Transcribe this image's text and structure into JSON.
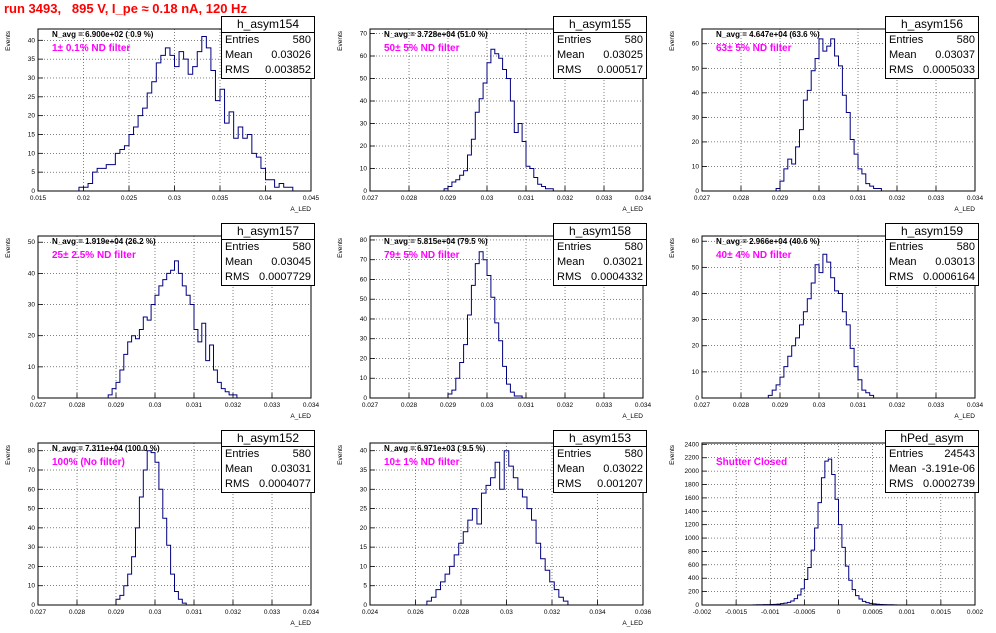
{
  "title": "run 3493,   895 V, I_pe ≈ 0.18 nA, 120 Hz",
  "colors": {
    "title": "#ff0000",
    "line": "#000080",
    "filter": "#ff00ff",
    "grid": "#000000"
  },
  "chart_data": [
    {
      "type": "histogram",
      "hist": "h_asym154",
      "entries": "580",
      "mean": "0.03026",
      "rms": "0.003852",
      "navg": "N_avg = 6.900e+02 ( 0.9 %)",
      "filter": "1± 0.1% ND filter",
      "xlabel": "A_LED",
      "ylabel": "Events",
      "xticks": [
        "0.015",
        "0.02",
        "0.025",
        "0.03",
        "0.035",
        "0.04",
        "0.045"
      ],
      "yticks": [
        "0",
        "5",
        "10",
        "15",
        "20",
        "25",
        "30",
        "35",
        "40"
      ],
      "xlim": [
        0.015,
        0.045
      ],
      "ylim": [
        0,
        43
      ],
      "x0": 0.0195,
      "dx": 0.0005,
      "values": [
        1,
        1,
        2,
        5,
        6,
        6,
        7,
        7,
        10,
        11,
        12,
        15,
        17,
        20,
        22,
        26,
        29,
        34,
        36,
        38,
        36,
        33,
        37,
        35,
        31,
        33,
        37,
        41,
        38,
        32,
        24,
        27,
        18,
        21,
        14,
        17,
        14,
        15,
        10,
        9,
        6,
        3,
        3,
        1,
        2,
        1,
        1
      ]
    },
    {
      "type": "histogram",
      "hist": "h_asym155",
      "entries": "580",
      "mean": "0.03025",
      "rms": "0.000517",
      "navg": "N_avg = 3.728e+04 (51.0 %)",
      "filter": "50± 5% ND filter",
      "xlabel": "A_LED",
      "ylabel": "Events",
      "xticks": [
        "0.027",
        "0.028",
        "0.029",
        "0.03",
        "0.031",
        "0.032",
        "0.033",
        "0.034"
      ],
      "yticks": [
        "0",
        "10",
        "20",
        "30",
        "40",
        "50",
        "60",
        "70"
      ],
      "xlim": [
        0.027,
        0.034
      ],
      "ylim": [
        0,
        72
      ],
      "x0": 0.0289,
      "dx": 0.0001,
      "values": [
        1,
        2,
        4,
        5,
        7,
        9,
        16,
        23,
        35,
        41,
        48,
        57,
        63,
        61,
        59,
        54,
        50,
        40,
        26,
        30,
        22,
        11,
        10,
        6,
        3,
        2,
        1,
        1
      ]
    },
    {
      "type": "histogram",
      "hist": "h_asym156",
      "entries": "580",
      "mean": "0.03037",
      "rms": "0.0005033",
      "navg": "N_avg = 4.647e+04 (63.6 %)",
      "filter": "63± 5% ND filter",
      "xlabel": "A_LED",
      "ylabel": "Events",
      "xticks": [
        "0.027",
        "0.028",
        "0.029",
        "0.03",
        "0.031",
        "0.032",
        "0.033",
        "0.034"
      ],
      "yticks": [
        "0",
        "10",
        "20",
        "30",
        "40",
        "50",
        "60"
      ],
      "xlim": [
        0.027,
        0.034
      ],
      "ylim": [
        0,
        66
      ],
      "x0": 0.0289,
      "dx": 0.0001,
      "values": [
        1,
        4,
        9,
        13,
        11,
        18,
        25,
        37,
        41,
        49,
        54,
        62,
        57,
        59,
        62,
        55,
        51,
        39,
        32,
        21,
        15,
        9,
        7,
        3,
        2,
        1,
        1
      ]
    },
    {
      "type": "histogram",
      "hist": "h_asym157",
      "entries": "580",
      "mean": "0.03045",
      "rms": "0.0007729",
      "navg": "N_avg = 1.919e+04 (26.2 %)",
      "filter": "25± 2.5% ND filter",
      "xlabel": "A_LED",
      "ylabel": "Events",
      "xticks": [
        "0.027",
        "0.028",
        "0.029",
        "0.03",
        "0.031",
        "0.032",
        "0.033",
        "0.034"
      ],
      "yticks": [
        "0",
        "10",
        "20",
        "30",
        "40",
        "50"
      ],
      "xlim": [
        0.027,
        0.034
      ],
      "ylim": [
        0,
        52
      ],
      "x0": 0.0288,
      "dx": 0.0001,
      "values": [
        1,
        3,
        5,
        9,
        14,
        18,
        20,
        19,
        22,
        26,
        25,
        30,
        33,
        36,
        38,
        40,
        41,
        44,
        40,
        36,
        33,
        30,
        22,
        18,
        24,
        12,
        17,
        9,
        5,
        3,
        2,
        1,
        1
      ]
    },
    {
      "type": "histogram",
      "hist": "h_asym158",
      "entries": "580",
      "mean": "0.03021",
      "rms": "0.0004332",
      "navg": "N_avg = 5.815e+04 (79.5 %)",
      "filter": "79± 5% ND filter",
      "xlabel": "A_LED",
      "ylabel": "Events",
      "xticks": [
        "0.027",
        "0.028",
        "0.029",
        "0.03",
        "0.031",
        "0.032",
        "0.033",
        "0.034"
      ],
      "yticks": [
        "0",
        "10",
        "20",
        "30",
        "40",
        "50",
        "60",
        "70",
        "80"
      ],
      "xlim": [
        0.027,
        0.034
      ],
      "ylim": [
        0,
        82
      ],
      "x0": 0.029,
      "dx": 0.0001,
      "values": [
        2,
        4,
        10,
        18,
        27,
        42,
        57,
        68,
        74,
        70,
        62,
        51,
        38,
        29,
        16,
        7,
        3,
        1,
        1
      ]
    },
    {
      "type": "histogram",
      "hist": "h_asym159",
      "entries": "580",
      "mean": "0.03013",
      "rms": "0.0006164",
      "navg": "N_avg = 2.966e+04 (40.6 %)",
      "filter": "40± 4% ND filter",
      "xlabel": "A_LED",
      "ylabel": "Events",
      "xticks": [
        "0.027",
        "0.028",
        "0.029",
        "0.03",
        "0.031",
        "0.032",
        "0.033",
        "0.034"
      ],
      "yticks": [
        "0",
        "10",
        "20",
        "30",
        "40",
        "50",
        "60"
      ],
      "xlim": [
        0.027,
        0.034
      ],
      "ylim": [
        0,
        62
      ],
      "x0": 0.0287,
      "dx": 0.0001,
      "values": [
        1,
        3,
        5,
        8,
        12,
        16,
        20,
        23,
        28,
        33,
        38,
        44,
        51,
        48,
        55,
        52,
        46,
        41,
        40,
        33,
        28,
        19,
        12,
        7,
        3,
        2,
        1
      ]
    },
    {
      "type": "histogram",
      "hist": "h_asym152",
      "entries": "580",
      "mean": "0.03031",
      "rms": "0.0004077",
      "navg": "N_avg = 7.311e+04 (100.0 %)",
      "filter": "100% (No filter)",
      "xlabel": "A_LED",
      "ylabel": "Events",
      "xticks": [
        "0.027",
        "0.028",
        "0.029",
        "0.03",
        "0.031",
        "0.032",
        "0.033",
        "0.034"
      ],
      "yticks": [
        "0",
        "10",
        "20",
        "30",
        "40",
        "50",
        "60",
        "70",
        "80"
      ],
      "xlim": [
        0.027,
        0.034
      ],
      "ylim": [
        0,
        84
      ],
      "x0": 0.029,
      "dx": 0.0001,
      "values": [
        3,
        5,
        10,
        16,
        25,
        40,
        56,
        70,
        80,
        79,
        74,
        60,
        45,
        31,
        16,
        7,
        3,
        1
      ]
    },
    {
      "type": "histogram",
      "hist": "h_asym153",
      "entries": "580",
      "mean": "0.03022",
      "rms": "0.001207",
      "navg": "N_avg = 6.971e+03 ( 9.5 %)",
      "filter": "10± 1% ND filter",
      "xlabel": "A_LED",
      "ylabel": "Events",
      "xticks": [
        "0.024",
        "0.026",
        "0.028",
        "0.03",
        "0.032",
        "0.034",
        "0.036"
      ],
      "yticks": [
        "0",
        "5",
        "10",
        "15",
        "20",
        "25",
        "30",
        "35",
        "40"
      ],
      "xlim": [
        0.024,
        0.036
      ],
      "ylim": [
        0,
        42
      ],
      "x0": 0.0265,
      "dx": 0.0002,
      "values": [
        1,
        2,
        4,
        6,
        8,
        10,
        13,
        16,
        19,
        22,
        25,
        21,
        29,
        31,
        33,
        37,
        30,
        40,
        36,
        33,
        30,
        28,
        25,
        22,
        16,
        12,
        9,
        6,
        4,
        2,
        1
      ]
    },
    {
      "type": "histogram",
      "hist": "hPed_asym",
      "entries": "24543",
      "mean": "-3.191e-06",
      "rms": "0.0002739",
      "navg": "",
      "filter": "Shutter Closed",
      "xlabel": "",
      "ylabel": "Events",
      "xticks": [
        "-0.002",
        "-0.0015",
        "-0.001",
        "-0.0005",
        "0",
        "0.0005",
        "0.001",
        "0.0015",
        "0.002"
      ],
      "yticks": [
        "0",
        "200",
        "400",
        "600",
        "800",
        "1000",
        "1200",
        "1400",
        "1600",
        "1800",
        "2000",
        "2200",
        "2400"
      ],
      "xlim": [
        -0.002,
        0.002
      ],
      "ylim": [
        0,
        2420
      ],
      "x0": -0.00125,
      "dx": 5e-05,
      "values": [
        2,
        3,
        4,
        5,
        6,
        8,
        10,
        14,
        20,
        28,
        40,
        60,
        95,
        150,
        240,
        380,
        560,
        820,
        1150,
        1530,
        1900,
        2150,
        2180,
        1950,
        1580,
        1200,
        860,
        580,
        370,
        230,
        140,
        90,
        55,
        35,
        24,
        16,
        11,
        8,
        6,
        4,
        3,
        2
      ]
    }
  ]
}
